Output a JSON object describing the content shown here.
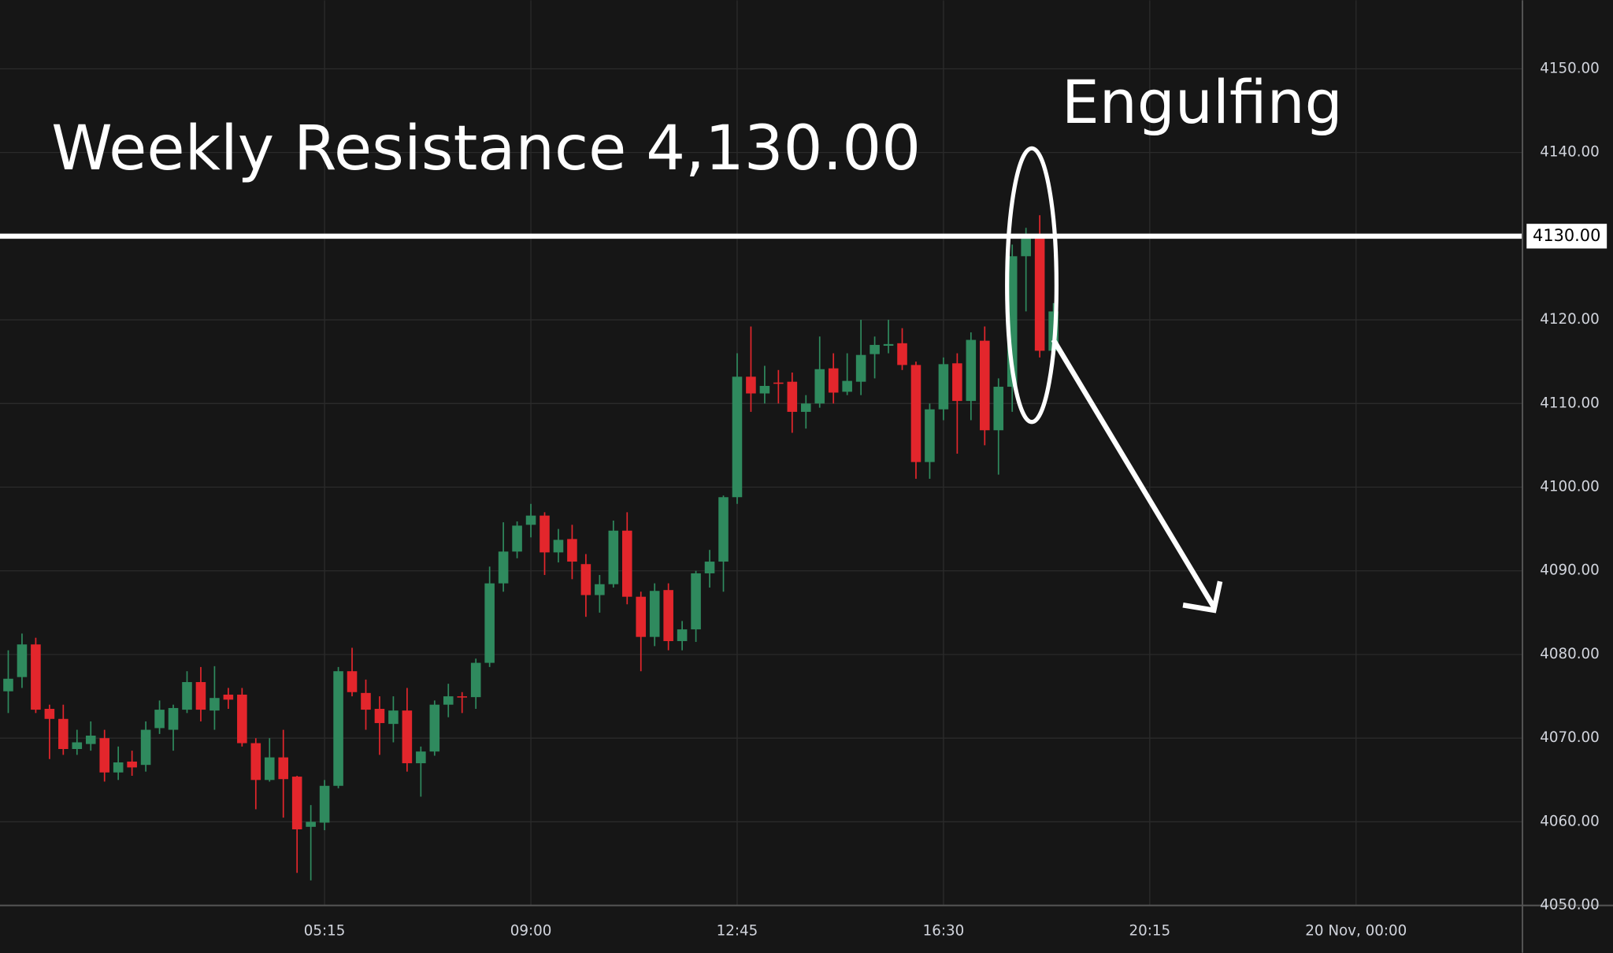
{
  "chart_data": {
    "type": "candlestick",
    "title": "Weekly Resistance 4,130.00",
    "annotation": "Engulfing",
    "resistance": {
      "value": 4130,
      "label": "4130.00"
    },
    "up_color": "#2f8a5e",
    "down_color": "#e3262c",
    "grid": true,
    "x": [
      "23:30",
      "23:45",
      "00:00",
      "00:15",
      "00:30",
      "00:45",
      "01:00",
      "01:15",
      "01:30",
      "01:45",
      "02:00",
      "02:15",
      "02:30",
      "02:45",
      "03:00",
      "03:15",
      "03:30",
      "03:45",
      "04:00",
      "04:15",
      "04:30",
      "04:45",
      "05:00",
      "05:15",
      "05:30",
      "05:45",
      "06:00",
      "06:15",
      "06:30",
      "06:45",
      "07:00",
      "07:15",
      "07:30",
      "07:45",
      "08:00",
      "08:15",
      "08:30",
      "08:45",
      "09:00",
      "09:15",
      "09:30",
      "09:45",
      "10:00",
      "10:15",
      "10:30",
      "10:45",
      "11:00",
      "11:15",
      "11:30",
      "11:45",
      "12:00",
      "12:15",
      "12:30",
      "12:45",
      "13:00",
      "13:15",
      "13:30",
      "13:45",
      "14:00",
      "14:15",
      "14:30",
      "14:45",
      "15:00",
      "15:15",
      "15:30",
      "15:45",
      "16:00",
      "16:15",
      "16:30",
      "16:45",
      "17:00",
      "17:15",
      "17:30",
      "17:45",
      "18:00",
      "18:15",
      "18:30"
    ],
    "open": [
      4075.6,
      4077.3,
      4081.2,
      4073.5,
      4072.3,
      4068.7,
      4069.3,
      4070,
      4065.9,
      4067.2,
      4066.8,
      4071.2,
      4071,
      4073.4,
      4076.7,
      4073.3,
      4075.2,
      4075.2,
      4069.4,
      4065,
      4067.7,
      4065.4,
      4059.4,
      4059.9,
      4064.3,
      4078,
      4075.4,
      4073.5,
      4071.7,
      4073.3,
      4067,
      4068.4,
      4074,
      4075,
      4074.9,
      4079,
      4088.5,
      4092.3,
      4095.5,
      4096.6,
      4092.2,
      4093.8,
      4090.8,
      4087.1,
      4088.4,
      4094.8,
      4086.9,
      4082.1,
      4087.7,
      4081.6,
      4083,
      4089.7,
      4091.1,
      4098.8,
      4113.2,
      4111.2,
      4112.5,
      4112.6,
      4109,
      4110,
      4114.2,
      4111.4,
      4112.6,
      4115.9,
      4116.9,
      4117.2,
      4114.6,
      4103,
      4109.3,
      4114.8,
      4110.3,
      4117.5,
      4106.8,
      4112,
      4127.6,
      4130,
      4116.3
    ],
    "high": [
      4080.5,
      4082.5,
      4082,
      4074,
      4074,
      4071,
      4072,
      4071,
      4069,
      4068.5,
      4072,
      4074.5,
      4074,
      4078,
      4078.5,
      4078.6,
      4076,
      4076,
      4070,
      4070,
      4071,
      4065.5,
      4062,
      4065,
      4078.5,
      4080.8,
      4077,
      4075,
      4075,
      4076,
      4069,
      4074.5,
      4076.5,
      4075.5,
      4079.5,
      4090.5,
      4095.8,
      4095.9,
      4098,
      4097,
      4095,
      4095.5,
      4092,
      4089.5,
      4096,
      4097,
      4087.5,
      4088.5,
      4088.5,
      4084,
      4090,
      4092.5,
      4099,
      4116,
      4119.2,
      4114.5,
      4114,
      4113.7,
      4111,
      4118,
      4116,
      4116,
      4120,
      4118,
      4120,
      4119,
      4115,
      4110,
      4115.5,
      4116,
      4118.5,
      4119.2,
      4113,
      4129,
      4131,
      4132.5,
      4122
    ],
    "low": [
      4073,
      4076,
      4073,
      4067.5,
      4068,
      4068,
      4068.5,
      4064.8,
      4065,
      4065.5,
      4066,
      4070.5,
      4068.5,
      4073,
      4072,
      4071,
      4073.5,
      4069,
      4061.5,
      4064.8,
      4060.5,
      4053.9,
      4053,
      4059,
      4064,
      4075,
      4071,
      4068,
      4069.5,
      4066,
      4063,
      4067.9,
      4072.5,
      4073,
      4073.5,
      4078.5,
      4087.5,
      4091.5,
      4094,
      4089.5,
      4091,
      4089,
      4084.5,
      4085,
      4088,
      4086,
      4078,
      4081,
      4080.5,
      4080.5,
      4081.5,
      4088,
      4087.5,
      4098,
      4109,
      4110,
      4110,
      4106.5,
      4107,
      4109.5,
      4110,
      4111,
      4111,
      4113,
      4116,
      4114,
      4101,
      4101,
      4108,
      4104,
      4108,
      4105,
      4101.5,
      4109,
      4121,
      4115.5,
      4115
    ],
    "close": [
      4077.1,
      4081.2,
      4073.4,
      4072.3,
      4068.7,
      4069.5,
      4070.3,
      4065.9,
      4067.1,
      4066.5,
      4071,
      4073.4,
      4073.6,
      4076.7,
      4073.4,
      4074.8,
      4074.6,
      4069.4,
      4065,
      4067.7,
      4065.1,
      4059.1,
      4060,
      4064.3,
      4078,
      4075.5,
      4073.4,
      4071.8,
      4073.3,
      4067,
      4068.4,
      4074,
      4075,
      4074.9,
      4079,
      4088.5,
      4092.3,
      4095.4,
      4096.6,
      4092.2,
      4093.7,
      4091.1,
      4087.1,
      4088.4,
      4094.8,
      4086.9,
      4082.1,
      4087.6,
      4081.6,
      4083,
      4089.7,
      4091.1,
      4098.8,
      4113.2,
      4111.2,
      4112.1,
      4112.4,
      4109,
      4110,
      4114.1,
      4111.3,
      4112.7,
      4115.8,
      4117,
      4117.1,
      4114.6,
      4103,
      4109.3,
      4114.7,
      4110.3,
      4117.6,
      4106.8,
      4112,
      4127.6,
      4129.7,
      4116.3,
      4121
    ],
    "xlim": [
      -0.6,
      110.1
    ],
    "xticks": [
      {
        "value": 23,
        "label": "05:15"
      },
      {
        "value": 38,
        "label": "09:00"
      },
      {
        "value": 53,
        "label": "12:45"
      },
      {
        "value": 68,
        "label": "16:30"
      },
      {
        "value": 83,
        "label": "20:15"
      },
      {
        "value": 98,
        "label": "20 Nov, 00:00"
      }
    ],
    "ylim": [
      4050,
      4158.2
    ],
    "yticks": [
      {
        "value": 4050,
        "label": "4050.00"
      },
      {
        "value": 4060,
        "label": "4060.00"
      },
      {
        "value": 4070,
        "label": "4070.00"
      },
      {
        "value": 4080,
        "label": "4080.00"
      },
      {
        "value": 4090,
        "label": "4090.00"
      },
      {
        "value": 4100,
        "label": "4100.00"
      },
      {
        "value": 4110,
        "label": "4110.00"
      },
      {
        "value": 4120,
        "label": "4120.00"
      },
      {
        "value": 4130,
        "label": "4130.00"
      },
      {
        "value": 4140,
        "label": "4140.00"
      },
      {
        "value": 4150,
        "label": "4150.00"
      }
    ]
  }
}
